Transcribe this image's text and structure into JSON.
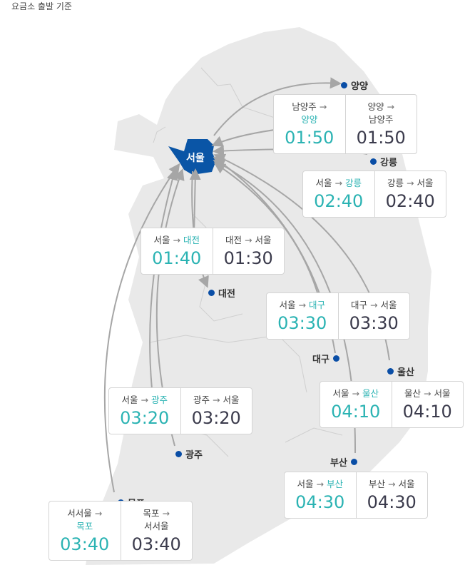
{
  "note": "요금소 출발 기준",
  "hub": "서울",
  "colors": {
    "outbound": "#2bb3b3",
    "inbound": "#3b3b4c",
    "hub": "#0a55a6",
    "land": "#e9e9e9",
    "arrow": "#a6a6a6"
  },
  "arrow_symbol": "→",
  "cities": [
    {
      "name": "양양"
    },
    {
      "name": "강릉"
    },
    {
      "name": "대전"
    },
    {
      "name": "대구"
    },
    {
      "name": "울산"
    },
    {
      "name": "광주"
    },
    {
      "name": "부산"
    },
    {
      "name": "목포"
    }
  ],
  "routes": [
    {
      "out_from": "남양주",
      "out_to": "양양",
      "out_time": "01:50",
      "in_from": "양양",
      "in_to": "남양주",
      "in_time": "01:50",
      "wrap": true
    },
    {
      "out_from": "서울",
      "out_to": "강릉",
      "out_time": "02:40",
      "in_from": "강릉",
      "in_to": "서울",
      "in_time": "02:40"
    },
    {
      "out_from": "서울",
      "out_to": "대전",
      "out_time": "01:40",
      "in_from": "대전",
      "in_to": "서울",
      "in_time": "01:30"
    },
    {
      "out_from": "서울",
      "out_to": "대구",
      "out_time": "03:30",
      "in_from": "대구",
      "in_to": "서울",
      "in_time": "03:30"
    },
    {
      "out_from": "서울",
      "out_to": "울산",
      "out_time": "04:10",
      "in_from": "울산",
      "in_to": "서울",
      "in_time": "04:10"
    },
    {
      "out_from": "서울",
      "out_to": "광주",
      "out_time": "03:20",
      "in_from": "광주",
      "in_to": "서울",
      "in_time": "03:20"
    },
    {
      "out_from": "서울",
      "out_to": "부산",
      "out_time": "04:30",
      "in_from": "부산",
      "in_to": "서울",
      "in_time": "04:30"
    },
    {
      "out_from": "서서울",
      "out_to": "목포",
      "out_time": "03:40",
      "in_from": "목포",
      "in_to": "서서울",
      "in_time": "03:40",
      "wrap": true
    }
  ]
}
